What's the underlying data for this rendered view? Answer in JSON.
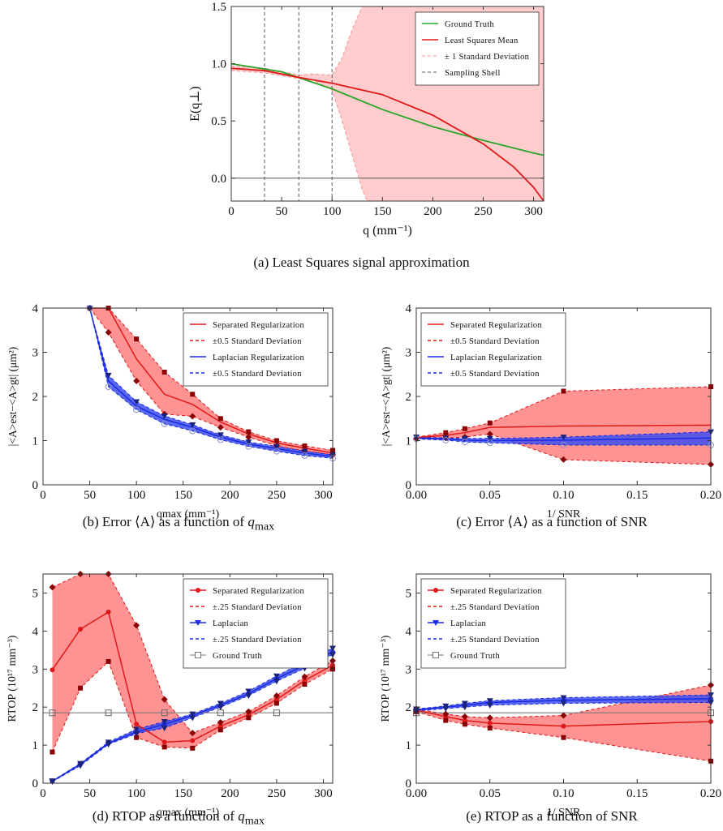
{
  "colors": {
    "red": "#e01818",
    "red_fill": "#ff8080",
    "blue": "#1d2be0",
    "blue_fill": "#3d4ff0",
    "green": "#2aa52a",
    "gray": "#808080",
    "dark_red": "#8b0000",
    "dark_blue": "#1a237e"
  },
  "captions": {
    "a": "(a) Least Squares signal approximation",
    "b_prefix": "(b) Error ⟨A⟩ as a function of ",
    "b_var": "q",
    "b_sub": "max",
    "c": "(c) Error ⟨A⟩ as a function of SNR",
    "d_prefix": "(d) RTOP as a function of ",
    "d_var": "q",
    "d_sub": "max",
    "e": "(e) RTOP as a function of SNR"
  },
  "chart_data": [
    {
      "id": "a",
      "type": "line",
      "xlabel": "q (mm⁻¹)",
      "ylabel": "E(q⊥)",
      "xlim": [
        0,
        310
      ],
      "ylim": [
        -0.2,
        1.5
      ],
      "xticks": [
        "0",
        "50",
        "100",
        "150",
        "200",
        "250",
        "300"
      ],
      "xtick_vals": [
        0,
        50,
        100,
        150,
        200,
        250,
        300
      ],
      "yticks": [
        "0.0",
        "0.5",
        "1.0",
        "1.5"
      ],
      "ytick_vals": [
        0,
        0.5,
        1.0,
        1.5
      ],
      "legend": [
        "Ground Truth",
        "Least Squares Mean",
        "± 1 Standard Deviation",
        "Sampling Shell"
      ],
      "legend_position": "top-right",
      "sampling_shells": [
        33,
        67,
        100
      ],
      "series": [
        {
          "name": "Ground Truth",
          "x": [
            0,
            50,
            100,
            150,
            200,
            250,
            300,
            310
          ],
          "y": [
            1.0,
            0.93,
            0.78,
            0.6,
            0.45,
            0.33,
            0.22,
            0.2
          ]
        },
        {
          "name": "Least Squares Mean",
          "x": [
            0,
            33,
            67,
            100,
            150,
            200,
            250,
            280,
            300,
            310
          ],
          "y": [
            0.96,
            0.94,
            0.88,
            0.83,
            0.73,
            0.55,
            0.3,
            0.1,
            -0.08,
            -0.2
          ]
        },
        {
          "name": "± 1 Standard Deviation",
          "x": [
            0,
            33,
            67,
            80,
            100,
            110,
            120,
            130,
            135,
            160,
            310
          ],
          "upper": [
            0.98,
            0.96,
            0.9,
            0.91,
            0.9,
            1.05,
            1.3,
            1.5,
            1.5,
            1.5,
            1.5
          ],
          "lower": [
            0.94,
            0.92,
            0.87,
            0.86,
            0.77,
            0.5,
            0.2,
            -0.1,
            -0.2,
            -0.2,
            -0.2
          ]
        }
      ]
    },
    {
      "id": "b",
      "type": "line",
      "xlabel": "qmax (mm⁻¹)",
      "ylabel": "|<A>est−<A>gt| (μm²)",
      "xlim": [
        0,
        310
      ],
      "ylim": [
        0,
        4
      ],
      "xticks": [
        "0",
        "50",
        "100",
        "150",
        "200",
        "250",
        "300"
      ],
      "xtick_vals": [
        0,
        50,
        100,
        150,
        200,
        250,
        300
      ],
      "yticks": [
        "0",
        "1",
        "2",
        "3",
        "4"
      ],
      "ytick_vals": [
        0,
        1,
        2,
        3,
        4
      ],
      "legend": [
        "Separated Regularization",
        "±0.5 Standard Deviation",
        "Laplacian Regularization",
        "±0.5 Standard Deviation"
      ],
      "legend_position": "top-right",
      "series": [
        {
          "name": "Separated Regularization",
          "x": [
            50,
            70,
            100,
            130,
            160,
            190,
            220,
            250,
            280,
            310
          ],
          "y": [
            4,
            4,
            2.85,
            2.05,
            1.82,
            1.42,
            1.15,
            0.95,
            0.83,
            0.72
          ],
          "upper": [
            4,
            4,
            3.3,
            2.55,
            2.05,
            1.5,
            1.2,
            1.0,
            0.88,
            0.78
          ],
          "lower": [
            4,
            3.45,
            2.35,
            1.6,
            1.55,
            1.3,
            1.08,
            0.88,
            0.77,
            0.68
          ]
        },
        {
          "name": "Laplacian Regularization",
          "x": [
            50,
            70,
            100,
            130,
            160,
            190,
            220,
            250,
            280,
            310
          ],
          "y": [
            4,
            2.35,
            1.78,
            1.48,
            1.3,
            1.08,
            0.92,
            0.82,
            0.72,
            0.64
          ],
          "upper": [
            4,
            2.48,
            1.88,
            1.56,
            1.36,
            1.13,
            0.97,
            0.87,
            0.76,
            0.68
          ],
          "lower": [
            4,
            2.22,
            1.7,
            1.38,
            1.22,
            1.02,
            0.87,
            0.76,
            0.66,
            0.6
          ]
        }
      ]
    },
    {
      "id": "c",
      "type": "line",
      "xlabel": "1/ SNR",
      "ylabel": "|<A>est−<A>gt| (μm²)",
      "xlim": [
        0,
        0.2
      ],
      "ylim": [
        0,
        4
      ],
      "xticks": [
        "0.00",
        "0.05",
        "0.10",
        "0.15",
        "0.20"
      ],
      "xtick_vals": [
        0,
        0.05,
        0.1,
        0.15,
        0.2
      ],
      "yticks": [
        "0",
        "1",
        "2",
        "3",
        "4"
      ],
      "ytick_vals": [
        0,
        1,
        2,
        3,
        4
      ],
      "legend": [
        "Separated Regularization",
        "±0.5 Standard Deviation",
        "Laplacian Regularization",
        "±0.5 Standard Deviation"
      ],
      "legend_position": "top-left",
      "series": [
        {
          "name": "Separated Regularization",
          "x": [
            0,
            0.02,
            0.033,
            0.05,
            0.1,
            0.2
          ],
          "y": [
            1.07,
            1.12,
            1.18,
            1.3,
            1.33,
            1.35
          ],
          "upper": [
            1.08,
            1.18,
            1.27,
            1.4,
            2.12,
            2.22
          ],
          "lower": [
            1.05,
            1.06,
            1.08,
            1.15,
            0.57,
            0.46
          ]
        },
        {
          "name": "Laplacian Regularization",
          "x": [
            0,
            0.02,
            0.033,
            0.05,
            0.1,
            0.2
          ],
          "y": [
            1.06,
            1.04,
            1.01,
            1.0,
            1.01,
            1.06
          ],
          "upper": [
            1.08,
            1.06,
            1.05,
            1.05,
            1.08,
            1.2
          ],
          "lower": [
            1.04,
            1.01,
            0.97,
            0.95,
            0.9,
            0.9
          ]
        }
      ]
    },
    {
      "id": "d",
      "type": "line",
      "xlabel": "qmax (mm⁻¹)",
      "ylabel": "RTOP (10¹⁷ mm⁻³)",
      "xlim": [
        0,
        310
      ],
      "ylim": [
        0,
        5.5
      ],
      "xticks": [
        "0",
        "50",
        "100",
        "150",
        "200",
        "250",
        "300"
      ],
      "xtick_vals": [
        0,
        50,
        100,
        150,
        200,
        250,
        300
      ],
      "yticks": [
        "0",
        "1",
        "2",
        "3",
        "4",
        "5"
      ],
      "ytick_vals": [
        0,
        1,
        2,
        3,
        4,
        5
      ],
      "legend": [
        "Separated Regularization",
        "±.25 Standard Deviation",
        "Laplacian",
        "±.25 Standard Deviation",
        "Ground Truth"
      ],
      "legend_position": "top-right",
      "series": [
        {
          "name": "Separated Regularization",
          "x": [
            10,
            40,
            70,
            100,
            130,
            160,
            190,
            220,
            250,
            280,
            310
          ],
          "y": [
            2.98,
            4.05,
            4.5,
            1.55,
            1.08,
            1.12,
            1.5,
            1.8,
            2.2,
            2.7,
            3.1
          ],
          "upper": [
            5.15,
            5.5,
            5.5,
            4.15,
            2.2,
            1.32,
            1.6,
            1.88,
            2.3,
            2.8,
            3.22
          ],
          "lower": [
            0.82,
            2.5,
            3.2,
            1.2,
            0.95,
            0.92,
            1.4,
            1.72,
            2.1,
            2.6,
            3.0
          ]
        },
        {
          "name": "Laplacian",
          "x": [
            10,
            40,
            70,
            100,
            130,
            160,
            190,
            220,
            250,
            280,
            310
          ],
          "y": [
            0.05,
            0.5,
            1.05,
            1.35,
            1.55,
            1.78,
            2.05,
            2.35,
            2.75,
            3.1,
            3.45
          ],
          "upper": [
            0.06,
            0.52,
            1.08,
            1.42,
            1.62,
            1.82,
            2.1,
            2.42,
            2.82,
            3.2,
            3.55
          ],
          "lower": [
            0.04,
            0.46,
            1.02,
            1.3,
            1.45,
            1.72,
            2.0,
            2.3,
            2.68,
            3.02,
            3.38
          ]
        },
        {
          "name": "Ground Truth",
          "x": [
            10,
            70,
            130,
            190,
            250
          ],
          "y": [
            1.85,
            1.85,
            1.85,
            1.85,
            1.85
          ]
        }
      ]
    },
    {
      "id": "e",
      "type": "line",
      "xlabel": "1/ SNR",
      "ylabel": "RTOP (10¹⁷ mm⁻³)",
      "xlim": [
        0,
        0.2
      ],
      "ylim": [
        0,
        5.5
      ],
      "xticks": [
        "0.00",
        "0.05",
        "0.10",
        "0.15",
        "0.20"
      ],
      "xtick_vals": [
        0,
        0.05,
        0.1,
        0.15,
        0.2
      ],
      "yticks": [
        "0",
        "1",
        "2",
        "3",
        "4",
        "5"
      ],
      "ytick_vals": [
        0,
        1,
        2,
        3,
        4,
        5
      ],
      "legend": [
        "Separated Regularization",
        "±.25 Standard Deviation",
        "Laplacian",
        "±.25 Standard Deviation",
        "Ground Truth"
      ],
      "legend_position": "top-left",
      "series": [
        {
          "name": "Separated Regularization",
          "x": [
            0,
            0.02,
            0.033,
            0.05,
            0.1,
            0.2
          ],
          "y": [
            1.92,
            1.75,
            1.65,
            1.58,
            1.5,
            1.62
          ],
          "upper": [
            1.95,
            1.82,
            1.75,
            1.72,
            1.78,
            2.58
          ],
          "lower": [
            1.88,
            1.65,
            1.55,
            1.45,
            1.2,
            0.58
          ]
        },
        {
          "name": "Laplacian",
          "x": [
            0,
            0.02,
            0.033,
            0.05,
            0.1,
            0.2
          ],
          "y": [
            1.93,
            2.0,
            2.05,
            2.12,
            2.18,
            2.22
          ],
          "upper": [
            1.95,
            2.03,
            2.1,
            2.17,
            2.25,
            2.32
          ],
          "lower": [
            1.9,
            1.96,
            2.0,
            2.05,
            2.1,
            2.12
          ]
        },
        {
          "name": "Ground Truth",
          "x": [
            0,
            0.2
          ],
          "y": [
            1.85,
            1.85
          ]
        }
      ]
    }
  ]
}
